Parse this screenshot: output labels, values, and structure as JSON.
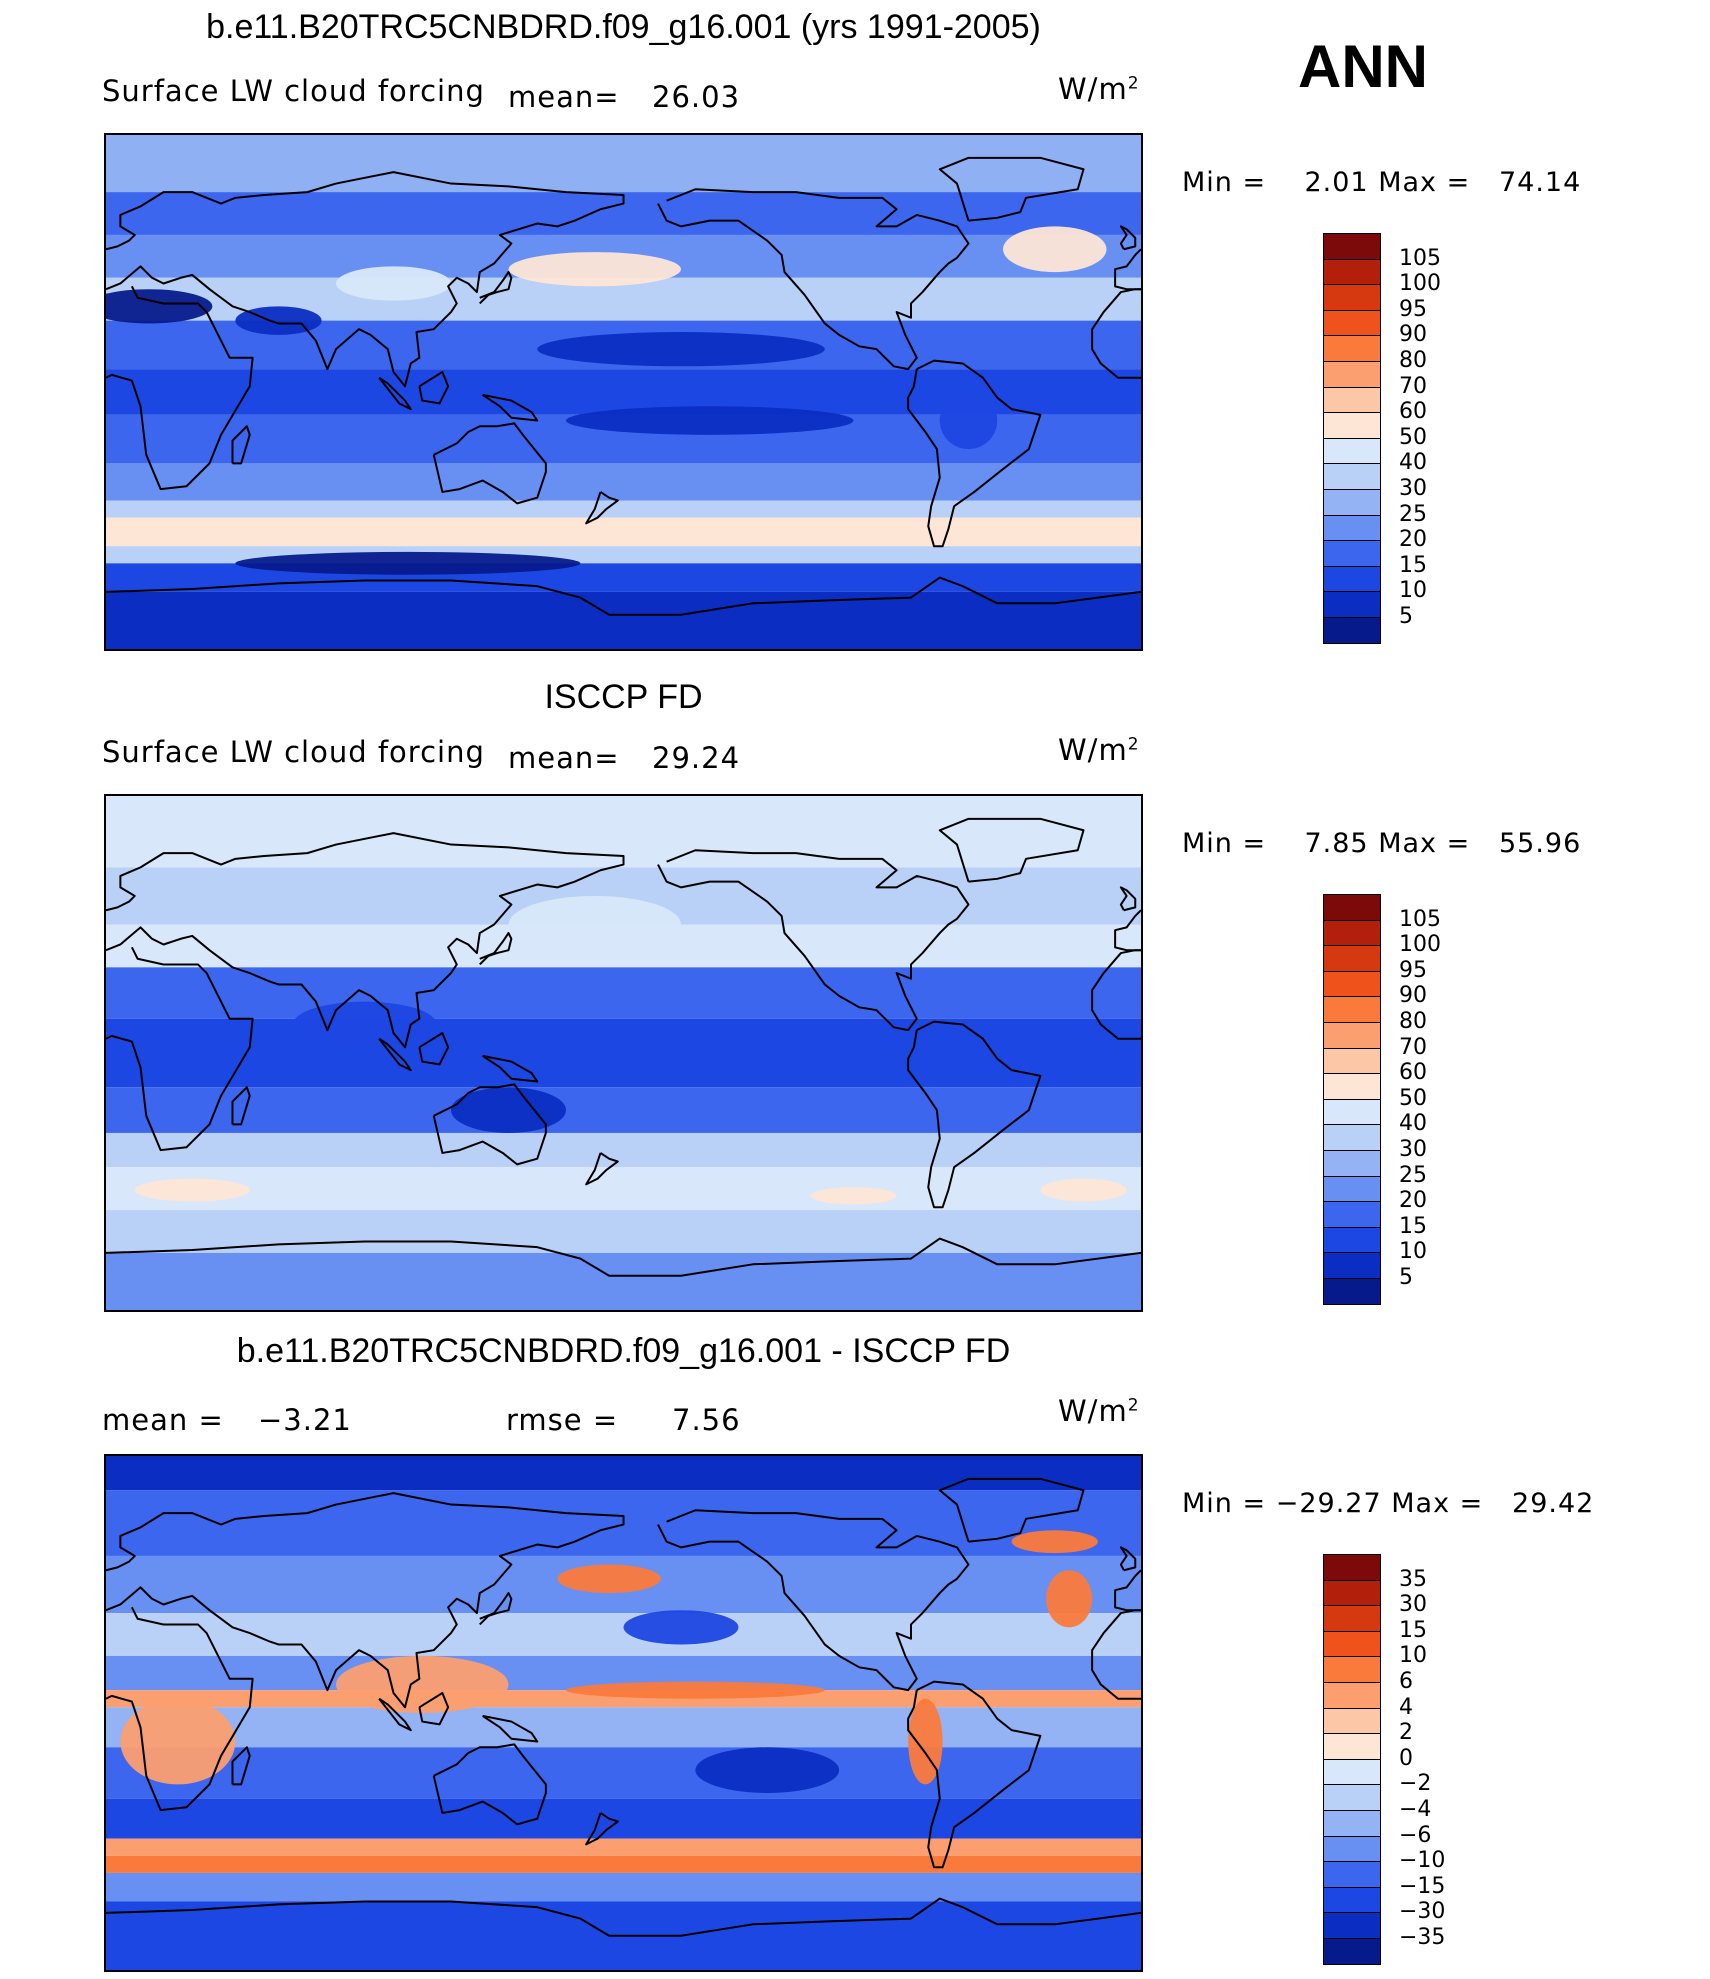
{
  "season": "ANN",
  "panels": [
    {
      "title": "b.e11.B20TRC5CNBDRD.f09_g16.001 (yrs 1991-2005)",
      "variable": "Surface LW cloud forcing",
      "mean_label": "mean=",
      "mean_value": "26.03",
      "units": "W/m",
      "units_exp": "2",
      "min_label": "Min =",
      "min_value": "2.01",
      "max_label": "Max =",
      "max_value": "74.14",
      "colorbar_ticks": [
        "105",
        "100",
        "95",
        "90",
        "80",
        "70",
        "60",
        "50",
        "40",
        "30",
        "25",
        "20",
        "15",
        "10",
        "5"
      ],
      "colorbar_colors": [
        "#7d0a0a",
        "#b2200c",
        "#d6390f",
        "#f0521c",
        "#fa7a3c",
        "#fb9f70",
        "#fcc7a6",
        "#fde6d6",
        "#d8e8fa",
        "#b9d1f6",
        "#93b3f5",
        "#6890f3",
        "#3c66ee",
        "#1d47e2",
        "#0b2dc2",
        "#061a8c"
      ],
      "field": "model"
    },
    {
      "title": "ISCCP FD",
      "variable": "Surface LW cloud forcing",
      "mean_label": "mean=",
      "mean_value": "29.24",
      "units": "W/m",
      "units_exp": "2",
      "min_label": "Min =",
      "min_value": "7.85",
      "max_label": "Max =",
      "max_value": "55.96",
      "colorbar_ticks": [
        "105",
        "100",
        "95",
        "90",
        "80",
        "70",
        "60",
        "50",
        "40",
        "30",
        "25",
        "20",
        "15",
        "10",
        "5"
      ],
      "colorbar_colors": [
        "#7d0a0a",
        "#b2200c",
        "#d6390f",
        "#f0521c",
        "#fa7a3c",
        "#fb9f70",
        "#fcc7a6",
        "#fde6d6",
        "#d8e8fa",
        "#b9d1f6",
        "#93b3f5",
        "#6890f3",
        "#3c66ee",
        "#1d47e2",
        "#0b2dc2",
        "#061a8c"
      ],
      "field": "obs"
    },
    {
      "title": "b.e11.B20TRC5CNBDRD.f09_g16.001 - ISCCP FD",
      "mean_label": "mean =",
      "mean_value": "−3.21",
      "rmse_label": "rmse =",
      "rmse_value": "7.56",
      "units": "W/m",
      "units_exp": "2",
      "min_label": "Min =",
      "min_value": "−29.27",
      "max_label": "Max =",
      "max_value": "29.42",
      "colorbar_ticks": [
        "35",
        "30",
        "15",
        "10",
        "6",
        "4",
        "2",
        "0",
        "−2",
        "−4",
        "−6",
        "−10",
        "−15",
        "−30",
        "−35"
      ],
      "colorbar_colors": [
        "#7d0a0a",
        "#b2200c",
        "#d6390f",
        "#f0521c",
        "#fa7a3c",
        "#fb9f70",
        "#fcc7a6",
        "#fde6d6",
        "#d8e8fa",
        "#b9d1f6",
        "#93b3f5",
        "#6890f3",
        "#3c66ee",
        "#1d47e2",
        "#0b2dc2",
        "#061a8c"
      ],
      "field": "diff"
    }
  ]
}
